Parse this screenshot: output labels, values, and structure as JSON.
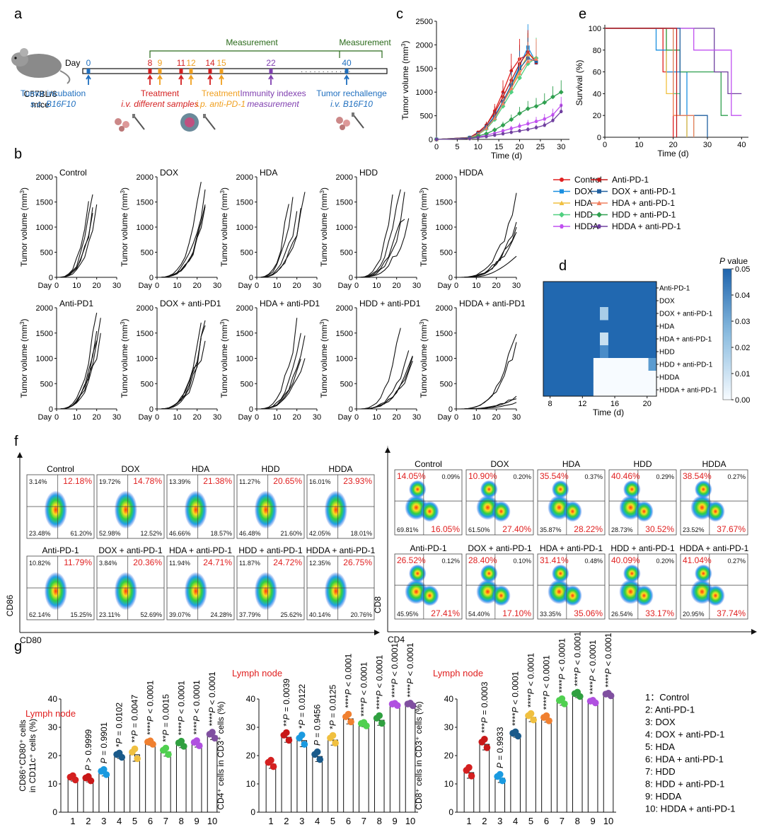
{
  "panel_labels": {
    "a": "a",
    "b": "b",
    "c": "c",
    "d": "d",
    "e": "e",
    "f": "f",
    "g": "g"
  },
  "panel_a": {
    "mouse_label": [
      "C57BL/6",
      "mice"
    ],
    "day_label": "Day",
    "measurement_labels": [
      "Measurement",
      "Measurement"
    ],
    "days": [
      {
        "d": "0",
        "color": "#1f6fbf"
      },
      {
        "d": "8",
        "color": "#d42020"
      },
      {
        "d": "9",
        "color": "#f0a020"
      },
      {
        "d": "11",
        "color": "#d42020"
      },
      {
        "d": "12",
        "color": "#f0a020"
      },
      {
        "d": "14",
        "color": "#d42020"
      },
      {
        "d": "15",
        "color": "#f0a020"
      },
      {
        "d": "22",
        "color": "#8040b0"
      },
      {
        "d": "40",
        "color": "#1f6fbf"
      }
    ],
    "events": [
      {
        "l1": "Tumor incubation",
        "l2": "s.c. B16F10",
        "color": "#1f6fbf"
      },
      {
        "l1": "Treatment",
        "l2": "i.v. different samples",
        "color": "#d42020"
      },
      {
        "l1": "Treatment",
        "l2": "i.p. anti-PD-1",
        "color": "#f0a020"
      },
      {
        "l1": "Immunity indexes",
        "l2": "measurement",
        "color": "#8040b0"
      },
      {
        "l1": "Tumor rechallenge",
        "l2": "i.v. B16F10",
        "color": "#1f6fbf"
      }
    ]
  },
  "panel_b": {
    "ylabel": "Tumor volume (mm",
    "ylabel_sup": "3",
    "ylabel_end": ")",
    "xlabel": "Day",
    "yticks": [
      "0",
      "500",
      "1000",
      "1500",
      "2000"
    ],
    "xticks": [
      "0",
      "10",
      "20",
      "30"
    ],
    "titles": [
      "Control",
      "DOX",
      "HDA",
      "HDD",
      "HDDA",
      "Anti-PD1",
      "DOX + anti-PD1",
      "HDA + anti-PD1",
      "HDD + anti-PD1",
      "HDDA + anti-PD1"
    ]
  },
  "panel_c": {
    "ylabel": "Tumor volume (mm",
    "ylabel_sup": "3",
    "ylabel_end": ")",
    "xlabel": "Time (d)",
    "yticks": [
      "0",
      "500",
      "1000",
      "1500",
      "2000",
      "2500"
    ],
    "xticks": [
      "0",
      "5",
      "10",
      "15",
      "20",
      "25",
      "30"
    ],
    "series": [
      {
        "name": "Control",
        "color": "#e02020",
        "marker": "circle",
        "x": [
          0,
          8,
          10,
          12,
          14,
          16,
          18,
          20,
          22
        ],
        "y": [
          0,
          40,
          150,
          300,
          600,
          1000,
          1450,
          1700,
          1800
        ]
      },
      {
        "name": "DOX",
        "color": "#1a8fe0",
        "marker": "square",
        "x": [
          0,
          8,
          10,
          12,
          14,
          16,
          18,
          20,
          22,
          24
        ],
        "y": [
          0,
          40,
          120,
          260,
          500,
          800,
          1150,
          1550,
          1950,
          1620
        ]
      },
      {
        "name": "HDA",
        "color": "#f0c040",
        "marker": "triangle",
        "x": [
          0,
          8,
          10,
          12,
          14,
          16,
          18,
          20,
          22,
          24
        ],
        "y": [
          0,
          35,
          110,
          240,
          460,
          780,
          1100,
          1450,
          1800,
          1700
        ]
      },
      {
        "name": "HDD",
        "color": "#50d080",
        "marker": "diamond",
        "x": [
          0,
          8,
          10,
          12,
          14,
          16,
          18,
          20,
          22,
          24
        ],
        "y": [
          0,
          30,
          100,
          220,
          420,
          700,
          1000,
          1300,
          1600,
          1720
        ]
      },
      {
        "name": "HDDA",
        "color": "#c050f0",
        "marker": "hexagon",
        "x": [
          0,
          8,
          10,
          12,
          14,
          16,
          18,
          20,
          22,
          24,
          26,
          28,
          30
        ],
        "y": [
          0,
          20,
          50,
          90,
          130,
          180,
          230,
          280,
          330,
          380,
          430,
          520,
          720
        ]
      },
      {
        "name": "Anti-PD-1",
        "color": "#c01818",
        "marker": "circle",
        "x": [
          0,
          8,
          10,
          12,
          14,
          16,
          18,
          20,
          22,
          24
        ],
        "y": [
          0,
          40,
          140,
          300,
          560,
          900,
          1250,
          1600,
          1850,
          1620
        ]
      },
      {
        "name": "DOX + anti-PD-1",
        "color": "#2060a0",
        "marker": "square",
        "x": [
          0,
          8,
          10,
          12,
          14,
          16,
          18,
          20,
          22,
          24
        ],
        "y": [
          0,
          35,
          120,
          260,
          480,
          800,
          1150,
          1500,
          1720,
          1650
        ]
      },
      {
        "name": "HDA + anti-PD-1",
        "color": "#f08060",
        "marker": "triangle",
        "x": [
          0,
          8,
          10,
          12,
          14,
          16,
          18,
          20,
          22,
          24
        ],
        "y": [
          0,
          30,
          110,
          240,
          450,
          760,
          1080,
          1400,
          1650,
          1700
        ]
      },
      {
        "name": "HDD + anti-PD-1",
        "color": "#30a050",
        "marker": "diamond",
        "x": [
          0,
          8,
          10,
          12,
          14,
          16,
          18,
          20,
          22,
          24,
          26,
          28,
          30
        ],
        "y": [
          0,
          25,
          70,
          120,
          200,
          300,
          420,
          550,
          650,
          700,
          780,
          900,
          1000
        ]
      },
      {
        "name": "HDDA + anti-PD-1",
        "color": "#7040a0",
        "marker": "hexagon",
        "x": [
          0,
          8,
          10,
          12,
          14,
          16,
          18,
          20,
          22,
          24,
          26,
          28,
          30
        ],
        "y": [
          0,
          20,
          40,
          60,
          90,
          120,
          150,
          180,
          210,
          250,
          300,
          400,
          590
        ]
      }
    ]
  },
  "panel_d": {
    "rows": [
      "Anti-PD-1",
      "DOX",
      "DOX + anti-PD-1",
      "HDA",
      "HDA + anti-PD-1",
      "HDD",
      "HDD + anti-PD-1",
      "HDDA",
      "HDDA + anti-PD-1"
    ],
    "xticks": [
      "8",
      "12",
      "16",
      "20"
    ],
    "xlabel": "Time (d)",
    "cbar_title_it": "P",
    "cbar_title": " value",
    "cbar_ticks": [
      "0.05",
      "0.04",
      "0.03",
      "0.02",
      "0.01",
      "0.00"
    ]
  },
  "panel_e": {
    "ylabel": "Survival (%)",
    "xlabel": "Time (d)",
    "yticks": [
      "0",
      "20",
      "40",
      "60",
      "80",
      "100"
    ],
    "xticks": [
      "0",
      "10",
      "20",
      "30",
      "40"
    ]
  },
  "legend": {
    "col1": [
      {
        "name": "Control",
        "color": "#e02020",
        "marker": "circle"
      },
      {
        "name": "DOX",
        "color": "#1a8fe0",
        "marker": "square"
      },
      {
        "name": "HDA",
        "color": "#f0c040",
        "marker": "triangle"
      },
      {
        "name": "HDD",
        "color": "#50d080",
        "marker": "diamond"
      },
      {
        "name": "HDDA",
        "color": "#c050f0",
        "marker": "hexagon"
      }
    ],
    "col2": [
      {
        "name": "Anti-PD-1",
        "color": "#c01818",
        "marker": "circle"
      },
      {
        "name": "DOX + anti-PD-1",
        "color": "#2060a0",
        "marker": "square"
      },
      {
        "name": "HDA + anti-PD-1",
        "color": "#f08060",
        "marker": "triangle"
      },
      {
        "name": "HDD + anti-PD-1",
        "color": "#30a050",
        "marker": "diamond"
      },
      {
        "name": "HDDA + anti-PD-1",
        "color": "#7040a0",
        "marker": "hexagon"
      }
    ]
  },
  "panel_f_left": {
    "ylabel": "CD86",
    "xlabel": "CD80",
    "plots": [
      {
        "t": "Control",
        "ul": "3.14%",
        "ur": "12.18%",
        "ll": "23.48%",
        "lr": "61.20%"
      },
      {
        "t": "DOX",
        "ul": "19.72%",
        "ur": "14.78%",
        "ll": "52.98%",
        "lr": "12.52%"
      },
      {
        "t": "HDA",
        "ul": "13.39%",
        "ur": "21.38%",
        "ll": "46.66%",
        "lr": "18.57%"
      },
      {
        "t": "HDD",
        "ul": "11.27%",
        "ur": "20.65%",
        "ll": "46.48%",
        "lr": "21.60%"
      },
      {
        "t": "HDDA",
        "ul": "16.01%",
        "ur": "23.93%",
        "ll": "42.05%",
        "lr": "18.01%"
      },
      {
        "t": "Anti-PD-1",
        "ul": "10.82%",
        "ur": "11.79%",
        "ll": "62.14%",
        "lr": "15.25%"
      },
      {
        "t": "DOX + anti-PD-1",
        "ul": "3.84%",
        "ur": "20.36%",
        "ll": "23.11%",
        "lr": "52.69%"
      },
      {
        "t": "HDA + anti-PD-1",
        "ul": "11.94%",
        "ur": "24.71%",
        "ll": "39.07%",
        "lr": "24.28%"
      },
      {
        "t": "HDD + anti-PD-1",
        "ul": "11.87%",
        "ur": "24.72%",
        "ll": "37.79%",
        "lr": "25.62%"
      },
      {
        "t": "HDDA + anti-PD-1",
        "ul": "12.35%",
        "ur": "26.75%",
        "ll": "40.14%",
        "lr": "20.76%"
      }
    ]
  },
  "panel_f_right": {
    "ylabel": "CD8",
    "xlabel": "CD4",
    "plots": [
      {
        "t": "Control",
        "ul": "14.05%",
        "ur": "0.09%",
        "ll": "69.81%",
        "lr": "16.05%"
      },
      {
        "t": "DOX",
        "ul": "10.90%",
        "ur": "0.20%",
        "ll": "61.50%",
        "lr": "27.40%"
      },
      {
        "t": "HDA",
        "ul": "35.54%",
        "ur": "0.37%",
        "ll": "35.87%",
        "lr": "28.22%"
      },
      {
        "t": "HDD",
        "ul": "40.46%",
        "ur": "0.29%",
        "ll": "28.73%",
        "lr": "30.52%"
      },
      {
        "t": "HDDA",
        "ul": "38.54%",
        "ur": "0.27%",
        "ll": "23.52%",
        "lr": "37.67%"
      },
      {
        "t": "Anti-PD-1",
        "ul": "26.52%",
        "ur": "0.12%",
        "ll": "45.95%",
        "lr": "27.41%"
      },
      {
        "t": "DOX + anti-PD-1",
        "ul": "28.40%",
        "ur": "0.10%",
        "ll": "54.40%",
        "lr": "17.10%"
      },
      {
        "t": "HDA + anti-PD-1",
        "ul": "31.41%",
        "ur": "0.48%",
        "ll": "33.35%",
        "lr": "35.06%"
      },
      {
        "t": "HDD + anti-PD-1",
        "ul": "40.09%",
        "ur": "0.20%",
        "ll": "26.54%",
        "lr": "33.17%"
      },
      {
        "t": "HDDA + anti-PD-1",
        "ul": "41.04%",
        "ur": "0.27%",
        "ll": "20.95%",
        "lr": "37.74%"
      }
    ]
  },
  "panel_g": {
    "colors": [
      "#d42020",
      "#c81818",
      "#1a9ae0",
      "#1a5a8a",
      "#f0c040",
      "#f08030",
      "#50d050",
      "#30a040",
      "#b050e0",
      "#8050a0"
    ],
    "title": "Lymph node",
    "charts": [
      {
        "ylabel1": "CD86⁺CD80⁺ cells",
        "ylabel2": "in CD11c⁺ cells (%)",
        "yticks": [
          "0",
          "10",
          "20",
          "30",
          "40"
        ],
        "ymax": 40,
        "values": [
          12,
          11.7,
          14,
          20,
          20.3,
          24.5,
          21.3,
          24,
          24.2,
          27
        ],
        "errors": [
          1.0,
          1.0,
          1.2,
          1.0,
          2.3,
          0.8,
          1.5,
          1.2,
          1.2,
          1.4
        ],
        "pvalues": [
          "",
          "P > 0.9999",
          "P = 0.9901",
          "*P = 0.0102",
          "**P = 0.0047",
          "****P < 0.0001",
          "**P = 0.0015",
          "****P < 0.0001",
          "****P < 0.0001",
          "****P < 0.0001"
        ]
      },
      {
        "ylabel1": "CD4⁺ cells in CD3⁺ cells (%)",
        "ylabel2": "",
        "yticks": [
          "0",
          "10",
          "20",
          "30",
          "40"
        ],
        "ymax": 40,
        "values": [
          17,
          26.5,
          25.3,
          19.7,
          25.5,
          33,
          31,
          32.5,
          38,
          38
        ],
        "errors": [
          1.5,
          1.8,
          2.2,
          1.8,
          1.8,
          1.8,
          0.8,
          1.8,
          0.5,
          0.6
        ],
        "pvalues": [
          "",
          "**P = 0.0039",
          "*P = 0.0122",
          "P = 0.9456",
          "*P = 0.0125",
          "****P < 0.0001",
          "****P < 0.0001",
          "****P < 0.0001",
          "****P < 0.0001",
          "****P < 0.0001"
        ]
      },
      {
        "ylabel1": "CD8⁺ cells in CD3⁺ cells (%)",
        "ylabel2": "",
        "yticks": [
          "0",
          "10",
          "20",
          "30",
          "40"
        ],
        "ymax": 40,
        "values": [
          14,
          24,
          12,
          27.5,
          33.5,
          33,
          39,
          41.5,
          39,
          41.5
        ],
        "errors": [
          2.0,
          2.0,
          1.5,
          1.0,
          1.5,
          1.2,
          1.2,
          1.0,
          0.6,
          0.6
        ],
        "pvalues": [
          "",
          "***P = 0.0003",
          "P = 0.9933",
          "****P < 0.0001",
          "****P < 0.0001",
          "****P < 0.0001",
          "****P < 0.0001",
          "****P < 0.0001",
          "****P < 0.0001",
          "****P < 0.0001"
        ]
      }
    ],
    "legend": [
      "1：Control",
      "2: Anti-PD-1",
      "3: DOX",
      "4: DOX + anti-PD-1",
      "5: HDA",
      "6: HDA + anti-PD-1",
      "7: HDD",
      "8: HDD + anti-PD-1",
      "9: HDDA",
      "10: HDDA + anti-PD-1"
    ]
  }
}
